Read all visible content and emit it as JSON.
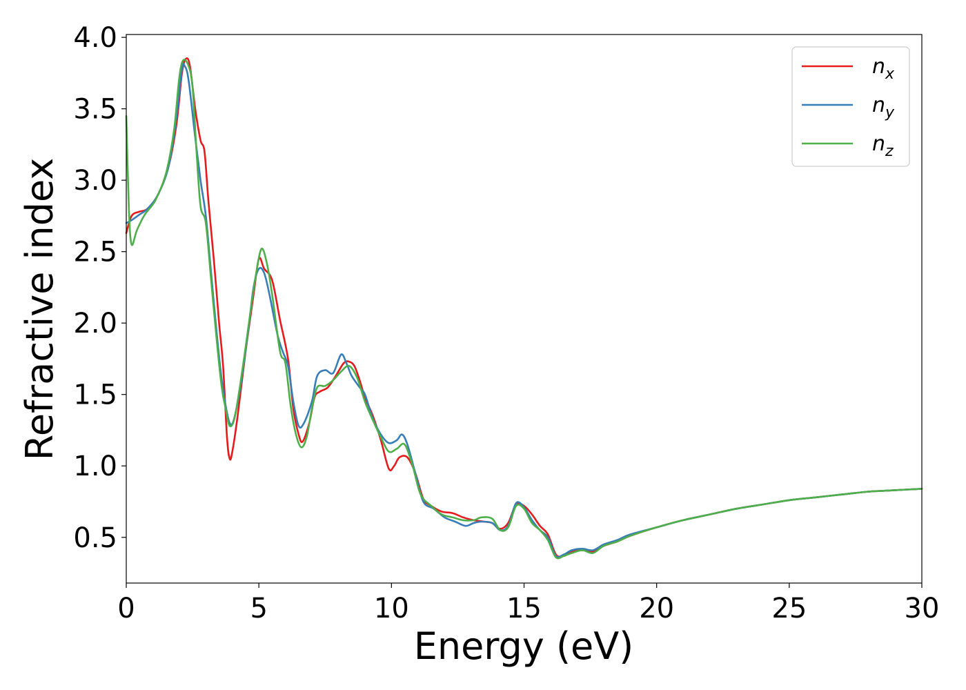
{
  "chart_data": {
    "type": "line",
    "title": "",
    "xlabel": "Energy (eV)",
    "ylabel": "Refractive index",
    "xlim": [
      0,
      30
    ],
    "ylim": [
      0.18,
      4.02
    ],
    "xticks": [
      0,
      5,
      10,
      15,
      20,
      25,
      30
    ],
    "xtick_labels": [
      "0",
      "5",
      "10",
      "15",
      "20",
      "25",
      "30"
    ],
    "yticks": [
      0.5,
      1.0,
      1.5,
      2.0,
      2.5,
      3.0,
      3.5,
      4.0
    ],
    "ytick_labels": [
      "0.5",
      "1.0",
      "1.5",
      "2.0",
      "2.5",
      "3.0",
      "3.5",
      "4.0"
    ],
    "grid": false,
    "legend_position": "top-right",
    "series": [
      {
        "name": "x",
        "legend_base": "n",
        "legend_sub": "x",
        "color": "#e41a1c",
        "points": [
          [
            0,
            2.63
          ],
          [
            0.2,
            2.75
          ],
          [
            0.5,
            2.78
          ],
          [
            0.8,
            2.8
          ],
          [
            1.2,
            2.9
          ],
          [
            1.6,
            3.1
          ],
          [
            1.9,
            3.4
          ],
          [
            2.1,
            3.75
          ],
          [
            2.25,
            3.85
          ],
          [
            2.4,
            3.8
          ],
          [
            2.6,
            3.5
          ],
          [
            2.8,
            3.28
          ],
          [
            2.95,
            3.2
          ],
          [
            3.1,
            2.85
          ],
          [
            3.3,
            2.45
          ],
          [
            3.5,
            2.0
          ],
          [
            3.65,
            1.7
          ],
          [
            3.8,
            1.2
          ],
          [
            3.9,
            1.05
          ],
          [
            4.0,
            1.1
          ],
          [
            4.2,
            1.35
          ],
          [
            4.5,
            1.8
          ],
          [
            4.8,
            2.2
          ],
          [
            5.0,
            2.45
          ],
          [
            5.2,
            2.38
          ],
          [
            5.5,
            2.3
          ],
          [
            5.8,
            2.02
          ],
          [
            6.1,
            1.75
          ],
          [
            6.3,
            1.4
          ],
          [
            6.5,
            1.22
          ],
          [
            6.65,
            1.17
          ],
          [
            6.9,
            1.3
          ],
          [
            7.1,
            1.48
          ],
          [
            7.3,
            1.52
          ],
          [
            7.6,
            1.55
          ],
          [
            7.9,
            1.63
          ],
          [
            8.2,
            1.72
          ],
          [
            8.4,
            1.73
          ],
          [
            8.6,
            1.7
          ],
          [
            8.8,
            1.6
          ],
          [
            9.0,
            1.48
          ],
          [
            9.3,
            1.35
          ],
          [
            9.6,
            1.18
          ],
          [
            9.9,
            0.98
          ],
          [
            10.1,
            1.0
          ],
          [
            10.3,
            1.06
          ],
          [
            10.6,
            1.06
          ],
          [
            10.9,
            0.95
          ],
          [
            11.2,
            0.77
          ],
          [
            11.5,
            0.72
          ],
          [
            11.9,
            0.68
          ],
          [
            12.3,
            0.67
          ],
          [
            12.7,
            0.64
          ],
          [
            13.1,
            0.62
          ],
          [
            13.5,
            0.61
          ],
          [
            13.8,
            0.6
          ],
          [
            14.1,
            0.56
          ],
          [
            14.4,
            0.6
          ],
          [
            14.7,
            0.73
          ],
          [
            15.0,
            0.72
          ],
          [
            15.3,
            0.66
          ],
          [
            15.6,
            0.58
          ],
          [
            15.9,
            0.52
          ],
          [
            16.2,
            0.38
          ],
          [
            16.5,
            0.37
          ],
          [
            16.8,
            0.4
          ],
          [
            17.2,
            0.41
          ],
          [
            17.6,
            0.4
          ],
          [
            18.0,
            0.44
          ],
          [
            18.5,
            0.47
          ],
          [
            19.0,
            0.51
          ],
          [
            20.0,
            0.57
          ],
          [
            21.0,
            0.62
          ],
          [
            22.0,
            0.66
          ],
          [
            23.0,
            0.7
          ],
          [
            24.0,
            0.73
          ],
          [
            25.0,
            0.76
          ],
          [
            26.0,
            0.78
          ],
          [
            27.0,
            0.8
          ],
          [
            28.0,
            0.82
          ],
          [
            29.0,
            0.83
          ],
          [
            30.0,
            0.84
          ]
        ]
      },
      {
        "name": "y",
        "legend_base": "n",
        "legend_sub": "y",
        "color": "#377eb8",
        "points": [
          [
            0,
            2.7
          ],
          [
            0.2,
            2.72
          ],
          [
            0.5,
            2.76
          ],
          [
            0.8,
            2.8
          ],
          [
            1.2,
            2.9
          ],
          [
            1.6,
            3.1
          ],
          [
            1.9,
            3.45
          ],
          [
            2.1,
            3.78
          ],
          [
            2.2,
            3.8
          ],
          [
            2.35,
            3.7
          ],
          [
            2.6,
            3.3
          ],
          [
            2.8,
            3.0
          ],
          [
            3.0,
            2.75
          ],
          [
            3.2,
            2.35
          ],
          [
            3.4,
            1.95
          ],
          [
            3.6,
            1.6
          ],
          [
            3.75,
            1.42
          ],
          [
            3.9,
            1.3
          ],
          [
            4.05,
            1.32
          ],
          [
            4.3,
            1.55
          ],
          [
            4.6,
            1.95
          ],
          [
            4.8,
            2.25
          ],
          [
            5.0,
            2.38
          ],
          [
            5.2,
            2.35
          ],
          [
            5.4,
            2.2
          ],
          [
            5.7,
            1.92
          ],
          [
            5.9,
            1.8
          ],
          [
            6.1,
            1.7
          ],
          [
            6.3,
            1.45
          ],
          [
            6.5,
            1.28
          ],
          [
            6.7,
            1.3
          ],
          [
            7.0,
            1.45
          ],
          [
            7.2,
            1.63
          ],
          [
            7.5,
            1.67
          ],
          [
            7.8,
            1.65
          ],
          [
            8.1,
            1.78
          ],
          [
            8.3,
            1.72
          ],
          [
            8.5,
            1.63
          ],
          [
            8.8,
            1.55
          ],
          [
            9.0,
            1.5
          ],
          [
            9.3,
            1.33
          ],
          [
            9.6,
            1.22
          ],
          [
            9.9,
            1.16
          ],
          [
            10.2,
            1.18
          ],
          [
            10.4,
            1.22
          ],
          [
            10.6,
            1.15
          ],
          [
            10.9,
            0.95
          ],
          [
            11.2,
            0.75
          ],
          [
            11.6,
            0.7
          ],
          [
            12.0,
            0.64
          ],
          [
            12.4,
            0.61
          ],
          [
            12.8,
            0.58
          ],
          [
            13.1,
            0.6
          ],
          [
            13.4,
            0.61
          ],
          [
            13.8,
            0.6
          ],
          [
            14.1,
            0.55
          ],
          [
            14.4,
            0.58
          ],
          [
            14.7,
            0.74
          ],
          [
            15.0,
            0.71
          ],
          [
            15.3,
            0.62
          ],
          [
            15.6,
            0.55
          ],
          [
            15.9,
            0.5
          ],
          [
            16.2,
            0.37
          ],
          [
            16.5,
            0.38
          ],
          [
            16.8,
            0.41
          ],
          [
            17.2,
            0.42
          ],
          [
            17.6,
            0.41
          ],
          [
            18.0,
            0.45
          ],
          [
            18.5,
            0.48
          ],
          [
            19.0,
            0.52
          ],
          [
            20.0,
            0.57
          ],
          [
            21.0,
            0.62
          ],
          [
            22.0,
            0.66
          ],
          [
            23.0,
            0.7
          ],
          [
            24.0,
            0.73
          ],
          [
            25.0,
            0.76
          ],
          [
            26.0,
            0.78
          ],
          [
            27.0,
            0.8
          ],
          [
            28.0,
            0.82
          ],
          [
            29.0,
            0.83
          ],
          [
            30.0,
            0.84
          ]
        ]
      },
      {
        "name": "z",
        "legend_base": "n",
        "legend_sub": "z",
        "color": "#4daf4a",
        "points": [
          [
            0,
            3.45
          ],
          [
            0.1,
            2.8
          ],
          [
            0.2,
            2.55
          ],
          [
            0.4,
            2.65
          ],
          [
            0.7,
            2.76
          ],
          [
            1.1,
            2.86
          ],
          [
            1.5,
            3.05
          ],
          [
            1.8,
            3.35
          ],
          [
            2.0,
            3.72
          ],
          [
            2.15,
            3.84
          ],
          [
            2.35,
            3.8
          ],
          [
            2.5,
            3.65
          ],
          [
            2.65,
            3.2
          ],
          [
            2.8,
            2.82
          ],
          [
            3.0,
            2.7
          ],
          [
            3.2,
            2.3
          ],
          [
            3.4,
            1.9
          ],
          [
            3.6,
            1.55
          ],
          [
            3.75,
            1.4
          ],
          [
            3.9,
            1.28
          ],
          [
            4.1,
            1.35
          ],
          [
            4.4,
            1.7
          ],
          [
            4.7,
            2.1
          ],
          [
            4.9,
            2.35
          ],
          [
            5.1,
            2.52
          ],
          [
            5.3,
            2.42
          ],
          [
            5.5,
            2.2
          ],
          [
            5.8,
            1.8
          ],
          [
            6.0,
            1.72
          ],
          [
            6.2,
            1.42
          ],
          [
            6.4,
            1.22
          ],
          [
            6.6,
            1.13
          ],
          [
            6.8,
            1.2
          ],
          [
            7.0,
            1.4
          ],
          [
            7.2,
            1.55
          ],
          [
            7.5,
            1.56
          ],
          [
            7.8,
            1.6
          ],
          [
            8.1,
            1.66
          ],
          [
            8.4,
            1.7
          ],
          [
            8.7,
            1.62
          ],
          [
            9.0,
            1.45
          ],
          [
            9.3,
            1.32
          ],
          [
            9.6,
            1.2
          ],
          [
            9.9,
            1.1
          ],
          [
            10.2,
            1.12
          ],
          [
            10.5,
            1.15
          ],
          [
            10.8,
            1.0
          ],
          [
            11.1,
            0.8
          ],
          [
            11.5,
            0.72
          ],
          [
            11.9,
            0.66
          ],
          [
            12.3,
            0.64
          ],
          [
            12.7,
            0.62
          ],
          [
            13.1,
            0.62
          ],
          [
            13.4,
            0.64
          ],
          [
            13.8,
            0.63
          ],
          [
            14.1,
            0.55
          ],
          [
            14.4,
            0.57
          ],
          [
            14.7,
            0.72
          ],
          [
            15.0,
            0.7
          ],
          [
            15.3,
            0.6
          ],
          [
            15.6,
            0.55
          ],
          [
            15.9,
            0.48
          ],
          [
            16.2,
            0.36
          ],
          [
            16.5,
            0.37
          ],
          [
            16.8,
            0.39
          ],
          [
            17.2,
            0.41
          ],
          [
            17.6,
            0.39
          ],
          [
            18.0,
            0.44
          ],
          [
            18.5,
            0.47
          ],
          [
            19.0,
            0.51
          ],
          [
            20.0,
            0.57
          ],
          [
            21.0,
            0.62
          ],
          [
            22.0,
            0.66
          ],
          [
            23.0,
            0.7
          ],
          [
            24.0,
            0.73
          ],
          [
            25.0,
            0.76
          ],
          [
            26.0,
            0.78
          ],
          [
            27.0,
            0.8
          ],
          [
            28.0,
            0.82
          ],
          [
            29.0,
            0.83
          ],
          [
            30.0,
            0.84
          ]
        ]
      }
    ]
  }
}
